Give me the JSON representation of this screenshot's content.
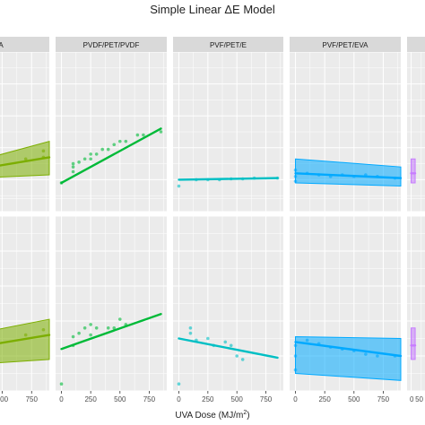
{
  "chart_data": {
    "type": "scatter",
    "title": "Simple Linear ΔE Model",
    "xlabel": "UVA Dose (MJ/m",
    "xlabel_sup": "2",
    "xlabel_tail": ")",
    "xlim": [
      -50,
      900
    ],
    "ylim": [
      0,
      10
    ],
    "x_ticks": [
      0,
      250,
      500,
      750
    ],
    "x_tick_labels": [
      "0",
      "250",
      "500",
      "750"
    ],
    "partial_x_tick_labels": [
      "0",
      "50"
    ],
    "grid": true,
    "legend": "none",
    "panels": [
      {
        "strip": "T/EVA",
        "color": "#7cae00",
        "row": 0,
        "partial": "left",
        "line": [
          [
            0,
            2.3
          ],
          [
            900,
            3.4
          ]
        ],
        "band": [
          [
            0,
            2.0,
            2.6
          ],
          [
            900,
            2.3,
            4.4
          ]
        ],
        "points": [
          [
            850,
            3.8
          ],
          [
            850,
            3.4
          ],
          [
            700,
            3.3
          ]
        ]
      },
      {
        "strip": "PVDF/PET/PVDF",
        "color": "#00ba38",
        "row": 0,
        "partial": "none",
        "line": [
          [
            0,
            1.8
          ],
          [
            850,
            5.2
          ]
        ],
        "band": [],
        "points": [
          [
            0,
            1.8
          ],
          [
            100,
            2.5
          ],
          [
            100,
            2.8
          ],
          [
            100,
            3.0
          ],
          [
            150,
            3.1
          ],
          [
            200,
            3.3
          ],
          [
            250,
            3.3
          ],
          [
            250,
            3.6
          ],
          [
            300,
            3.6
          ],
          [
            350,
            3.9
          ],
          [
            400,
            3.9
          ],
          [
            450,
            4.2
          ],
          [
            500,
            4.4
          ],
          [
            550,
            4.4
          ],
          [
            650,
            4.8
          ],
          [
            700,
            4.8
          ],
          [
            850,
            5.0
          ]
        ]
      },
      {
        "strip": "PVF/PET/E",
        "color": "#00bfc4",
        "row": 0,
        "partial": "none",
        "line": [
          [
            0,
            2.0
          ],
          [
            850,
            2.1
          ]
        ],
        "band": [],
        "points": [
          [
            0,
            1.6
          ],
          [
            150,
            2.0
          ],
          [
            250,
            2.0
          ],
          [
            350,
            2.0
          ],
          [
            450,
            2.05
          ],
          [
            550,
            2.05
          ],
          [
            650,
            2.1
          ],
          [
            850,
            2.1
          ]
        ]
      },
      {
        "strip": "PVF/PET/EVA",
        "color": "#00a9ff",
        "row": 0,
        "partial": "none",
        "line": [
          [
            0,
            2.4
          ],
          [
            900,
            2.1
          ]
        ],
        "band": [
          [
            0,
            1.8,
            3.3
          ],
          [
            900,
            1.6,
            2.8
          ]
        ],
        "points": [
          [
            0,
            1.9
          ],
          [
            0,
            2.2
          ],
          [
            0,
            2.6
          ],
          [
            100,
            2.4
          ],
          [
            200,
            2.3
          ],
          [
            300,
            2.2
          ],
          [
            400,
            2.3
          ],
          [
            500,
            2.2
          ],
          [
            600,
            2.3
          ],
          [
            700,
            2.2
          ],
          [
            850,
            2.1
          ]
        ]
      },
      {
        "strip": "",
        "color": "#c77cff",
        "row": 0,
        "partial": "right",
        "line": [
          [
            0,
            2.4
          ],
          [
            50,
            2.4
          ]
        ],
        "band": [
          [
            0,
            1.8,
            3.3
          ],
          [
            50,
            1.8,
            3.3
          ]
        ],
        "points": []
      },
      {
        "strip": "",
        "color": "#7cae00",
        "row": 1,
        "partial": "left",
        "line": [
          [
            0,
            2.2
          ],
          [
            900,
            3.2
          ]
        ],
        "band": [
          [
            0,
            1.4,
            2.9
          ],
          [
            900,
            1.8,
            4.1
          ]
        ],
        "points": [
          [
            850,
            3.5
          ],
          [
            700,
            3.2
          ]
        ]
      },
      {
        "strip": "",
        "color": "#00ba38",
        "row": 1,
        "partial": "none",
        "line": [
          [
            0,
            2.4
          ],
          [
            850,
            4.4
          ]
        ],
        "band": [],
        "points": [
          [
            0,
            0.4
          ],
          [
            100,
            2.6
          ],
          [
            100,
            3.1
          ],
          [
            150,
            3.3
          ],
          [
            200,
            3.6
          ],
          [
            250,
            3.2
          ],
          [
            250,
            3.8
          ],
          [
            300,
            3.6
          ],
          [
            400,
            3.6
          ],
          [
            450,
            3.6
          ],
          [
            500,
            4.1
          ],
          [
            550,
            3.8
          ]
        ]
      },
      {
        "strip": "",
        "color": "#00bfc4",
        "row": 1,
        "partial": "none",
        "line": [
          [
            0,
            3.0
          ],
          [
            850,
            1.9
          ]
        ],
        "band": [],
        "points": [
          [
            0,
            0.4
          ],
          [
            100,
            3.6
          ],
          [
            100,
            3.3
          ],
          [
            150,
            2.9
          ],
          [
            250,
            3.0
          ],
          [
            300,
            2.6
          ],
          [
            400,
            2.8
          ],
          [
            450,
            2.6
          ],
          [
            500,
            2.0
          ],
          [
            550,
            1.8
          ]
        ]
      },
      {
        "strip": "",
        "color": "#00a9ff",
        "row": 1,
        "partial": "none",
        "line": [
          [
            0,
            2.8
          ],
          [
            900,
            2.0
          ]
        ],
        "band": [
          [
            0,
            1.0,
            3.1
          ],
          [
            900,
            0.6,
            3.0
          ]
        ],
        "points": [
          [
            0,
            1.2
          ],
          [
            0,
            2.0
          ],
          [
            0,
            2.6
          ],
          [
            100,
            2.9
          ],
          [
            200,
            2.7
          ],
          [
            300,
            2.5
          ],
          [
            400,
            2.4
          ],
          [
            500,
            2.3
          ],
          [
            600,
            2.1
          ],
          [
            700,
            2.0
          ],
          [
            850,
            2.0
          ]
        ]
      },
      {
        "strip": "",
        "color": "#c77cff",
        "row": 1,
        "partial": "right",
        "line": [
          [
            0,
            2.6
          ],
          [
            50,
            2.6
          ]
        ],
        "band": [
          [
            0,
            1.8,
            3.6
          ],
          [
            50,
            1.8,
            3.6
          ]
        ],
        "points": []
      }
    ]
  }
}
